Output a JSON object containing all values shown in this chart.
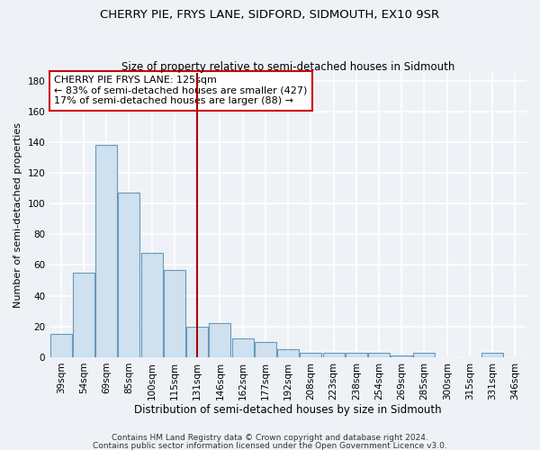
{
  "title": "CHERRY PIE, FRYS LANE, SIDFORD, SIDMOUTH, EX10 9SR",
  "subtitle": "Size of property relative to semi-detached houses in Sidmouth",
  "xlabel": "Distribution of semi-detached houses by size in Sidmouth",
  "ylabel": "Number of semi-detached properties",
  "categories": [
    "39sqm",
    "54sqm",
    "69sqm",
    "85sqm",
    "100sqm",
    "115sqm",
    "131sqm",
    "146sqm",
    "162sqm",
    "177sqm",
    "192sqm",
    "208sqm",
    "223sqm",
    "238sqm",
    "254sqm",
    "269sqm",
    "285sqm",
    "300sqm",
    "315sqm",
    "331sqm",
    "346sqm"
  ],
  "values": [
    15,
    55,
    138,
    107,
    68,
    57,
    20,
    22,
    12,
    10,
    5,
    3,
    3,
    3,
    3,
    1,
    3,
    0,
    0,
    3,
    0
  ],
  "bar_color": "#cfe0ef",
  "bar_edge_color": "#6699bb",
  "vline_x_index": 6,
  "vline_color": "#aa0000",
  "annotation_text": "CHERRY PIE FRYS LANE: 125sqm\n← 83% of semi-detached houses are smaller (427)\n17% of semi-detached houses are larger (88) →",
  "annotation_box_color": "white",
  "annotation_box_edge_color": "#cc0000",
  "ylim": [
    0,
    185
  ],
  "yticks": [
    0,
    20,
    40,
    60,
    80,
    100,
    120,
    140,
    160,
    180
  ],
  "footer1": "Contains HM Land Registry data © Crown copyright and database right 2024.",
  "footer2": "Contains public sector information licensed under the Open Government Licence v3.0.",
  "bg_color": "#eef2f7",
  "grid_color": "#ffffff",
  "title_fontsize": 9.5,
  "subtitle_fontsize": 8.5,
  "xlabel_fontsize": 8.5,
  "ylabel_fontsize": 8,
  "tick_fontsize": 7.5,
  "annotation_fontsize": 8,
  "footer_fontsize": 6.5
}
